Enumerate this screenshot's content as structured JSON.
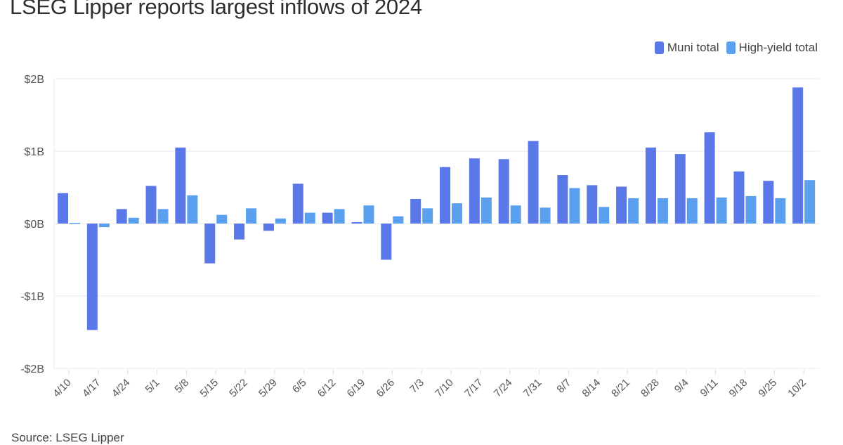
{
  "title": "LSEG Lipper reports largest inflows of 2024",
  "source": "Source: LSEG Lipper",
  "legend": [
    {
      "label": "Muni total",
      "color": "#5b78e8"
    },
    {
      "label": "High-yield total",
      "color": "#5aa0ef"
    }
  ],
  "colors": {
    "muni": "#5b78e8",
    "high_yield": "#5aa0ef",
    "grid": "#ebebef"
  },
  "y_axis": {
    "ticks": [
      "$2B",
      "$1B",
      "$0B",
      "-$1B",
      "-$2B"
    ],
    "tick_values": [
      2,
      1,
      0,
      -1,
      -2
    ]
  },
  "chart_data": {
    "type": "bar",
    "title": "LSEG Lipper reports largest inflows of 2024",
    "xlabel": "",
    "ylabel": "",
    "ylim": [
      -2,
      2
    ],
    "y_unit": "billions USD",
    "grid": true,
    "legend_position": "top-right",
    "categories": [
      "4/10",
      "4/17",
      "4/24",
      "5/1",
      "5/8",
      "5/15",
      "5/22",
      "5/29",
      "6/5",
      "6/12",
      "6/19",
      "6/26",
      "7/3",
      "7/10",
      "7/17",
      "7/24",
      "7/31",
      "8/7",
      "8/14",
      "8/21",
      "8/28",
      "9/4",
      "9/11",
      "9/18",
      "9/25",
      "10/2"
    ],
    "series": [
      {
        "name": "Muni total",
        "values": [
          0.42,
          -1.47,
          0.2,
          0.52,
          1.05,
          -0.55,
          -0.22,
          -0.1,
          0.55,
          0.15,
          0.02,
          -0.5,
          0.34,
          0.78,
          0.9,
          0.89,
          1.14,
          0.67,
          0.53,
          0.51,
          1.05,
          0.96,
          1.26,
          0.72,
          0.59,
          1.88
        ]
      },
      {
        "name": "High-yield total",
        "values": [
          0.01,
          -0.05,
          0.08,
          0.2,
          0.39,
          0.12,
          0.21,
          0.07,
          0.15,
          0.2,
          0.25,
          0.1,
          0.21,
          0.28,
          0.36,
          0.25,
          0.22,
          0.49,
          0.23,
          0.35,
          0.35,
          0.35,
          0.36,
          0.38,
          0.35,
          0.6
        ]
      }
    ],
    "source": "Source: LSEG Lipper"
  }
}
